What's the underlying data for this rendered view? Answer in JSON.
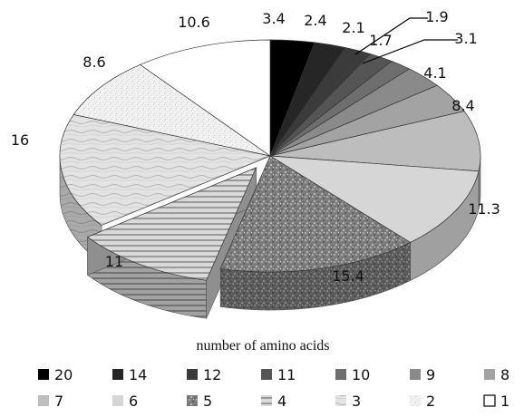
{
  "chart_data": {
    "type": "pie",
    "style": "3d-exploded",
    "xlabel": "number of amino acids",
    "legend_position": "bottom",
    "slices": [
      {
        "label": "20",
        "value": 3.4,
        "color": "#000000",
        "texture": "solid"
      },
      {
        "label": "14",
        "value": 2.4,
        "color": "#262626",
        "texture": "solid"
      },
      {
        "label": "12",
        "value": 2.1,
        "color": "#3b3b3b",
        "texture": "solid"
      },
      {
        "label": "11",
        "value": 1.9,
        "color": "#555555",
        "texture": "solid"
      },
      {
        "label": "10",
        "value": 1.7,
        "color": "#6e6e6e",
        "texture": "solid"
      },
      {
        "label": "9",
        "value": 3.1,
        "color": "#8a8a8a",
        "texture": "solid"
      },
      {
        "label": "8",
        "value": 4.1,
        "color": "#a3a3a3",
        "texture": "solid"
      },
      {
        "label": "7",
        "value": 8.4,
        "color": "#bdbdbd",
        "texture": "solid"
      },
      {
        "label": "6",
        "value": 11.3,
        "color": "#d6d6d6",
        "texture": "solid"
      },
      {
        "label": "5",
        "value": 15.4,
        "color": "#8c8c8c",
        "texture": "noise"
      },
      {
        "label": "4",
        "value": 11.0,
        "color": "#bfbfbf",
        "texture": "stripes"
      },
      {
        "label": "3",
        "value": 16.0,
        "color": "#dcdcdc",
        "texture": "marble"
      },
      {
        "label": "2",
        "value": 8.6,
        "color": "#ececec",
        "texture": "speckle"
      },
      {
        "label": "1",
        "value": 10.6,
        "color": "#ffffff",
        "texture": "solid"
      }
    ]
  }
}
